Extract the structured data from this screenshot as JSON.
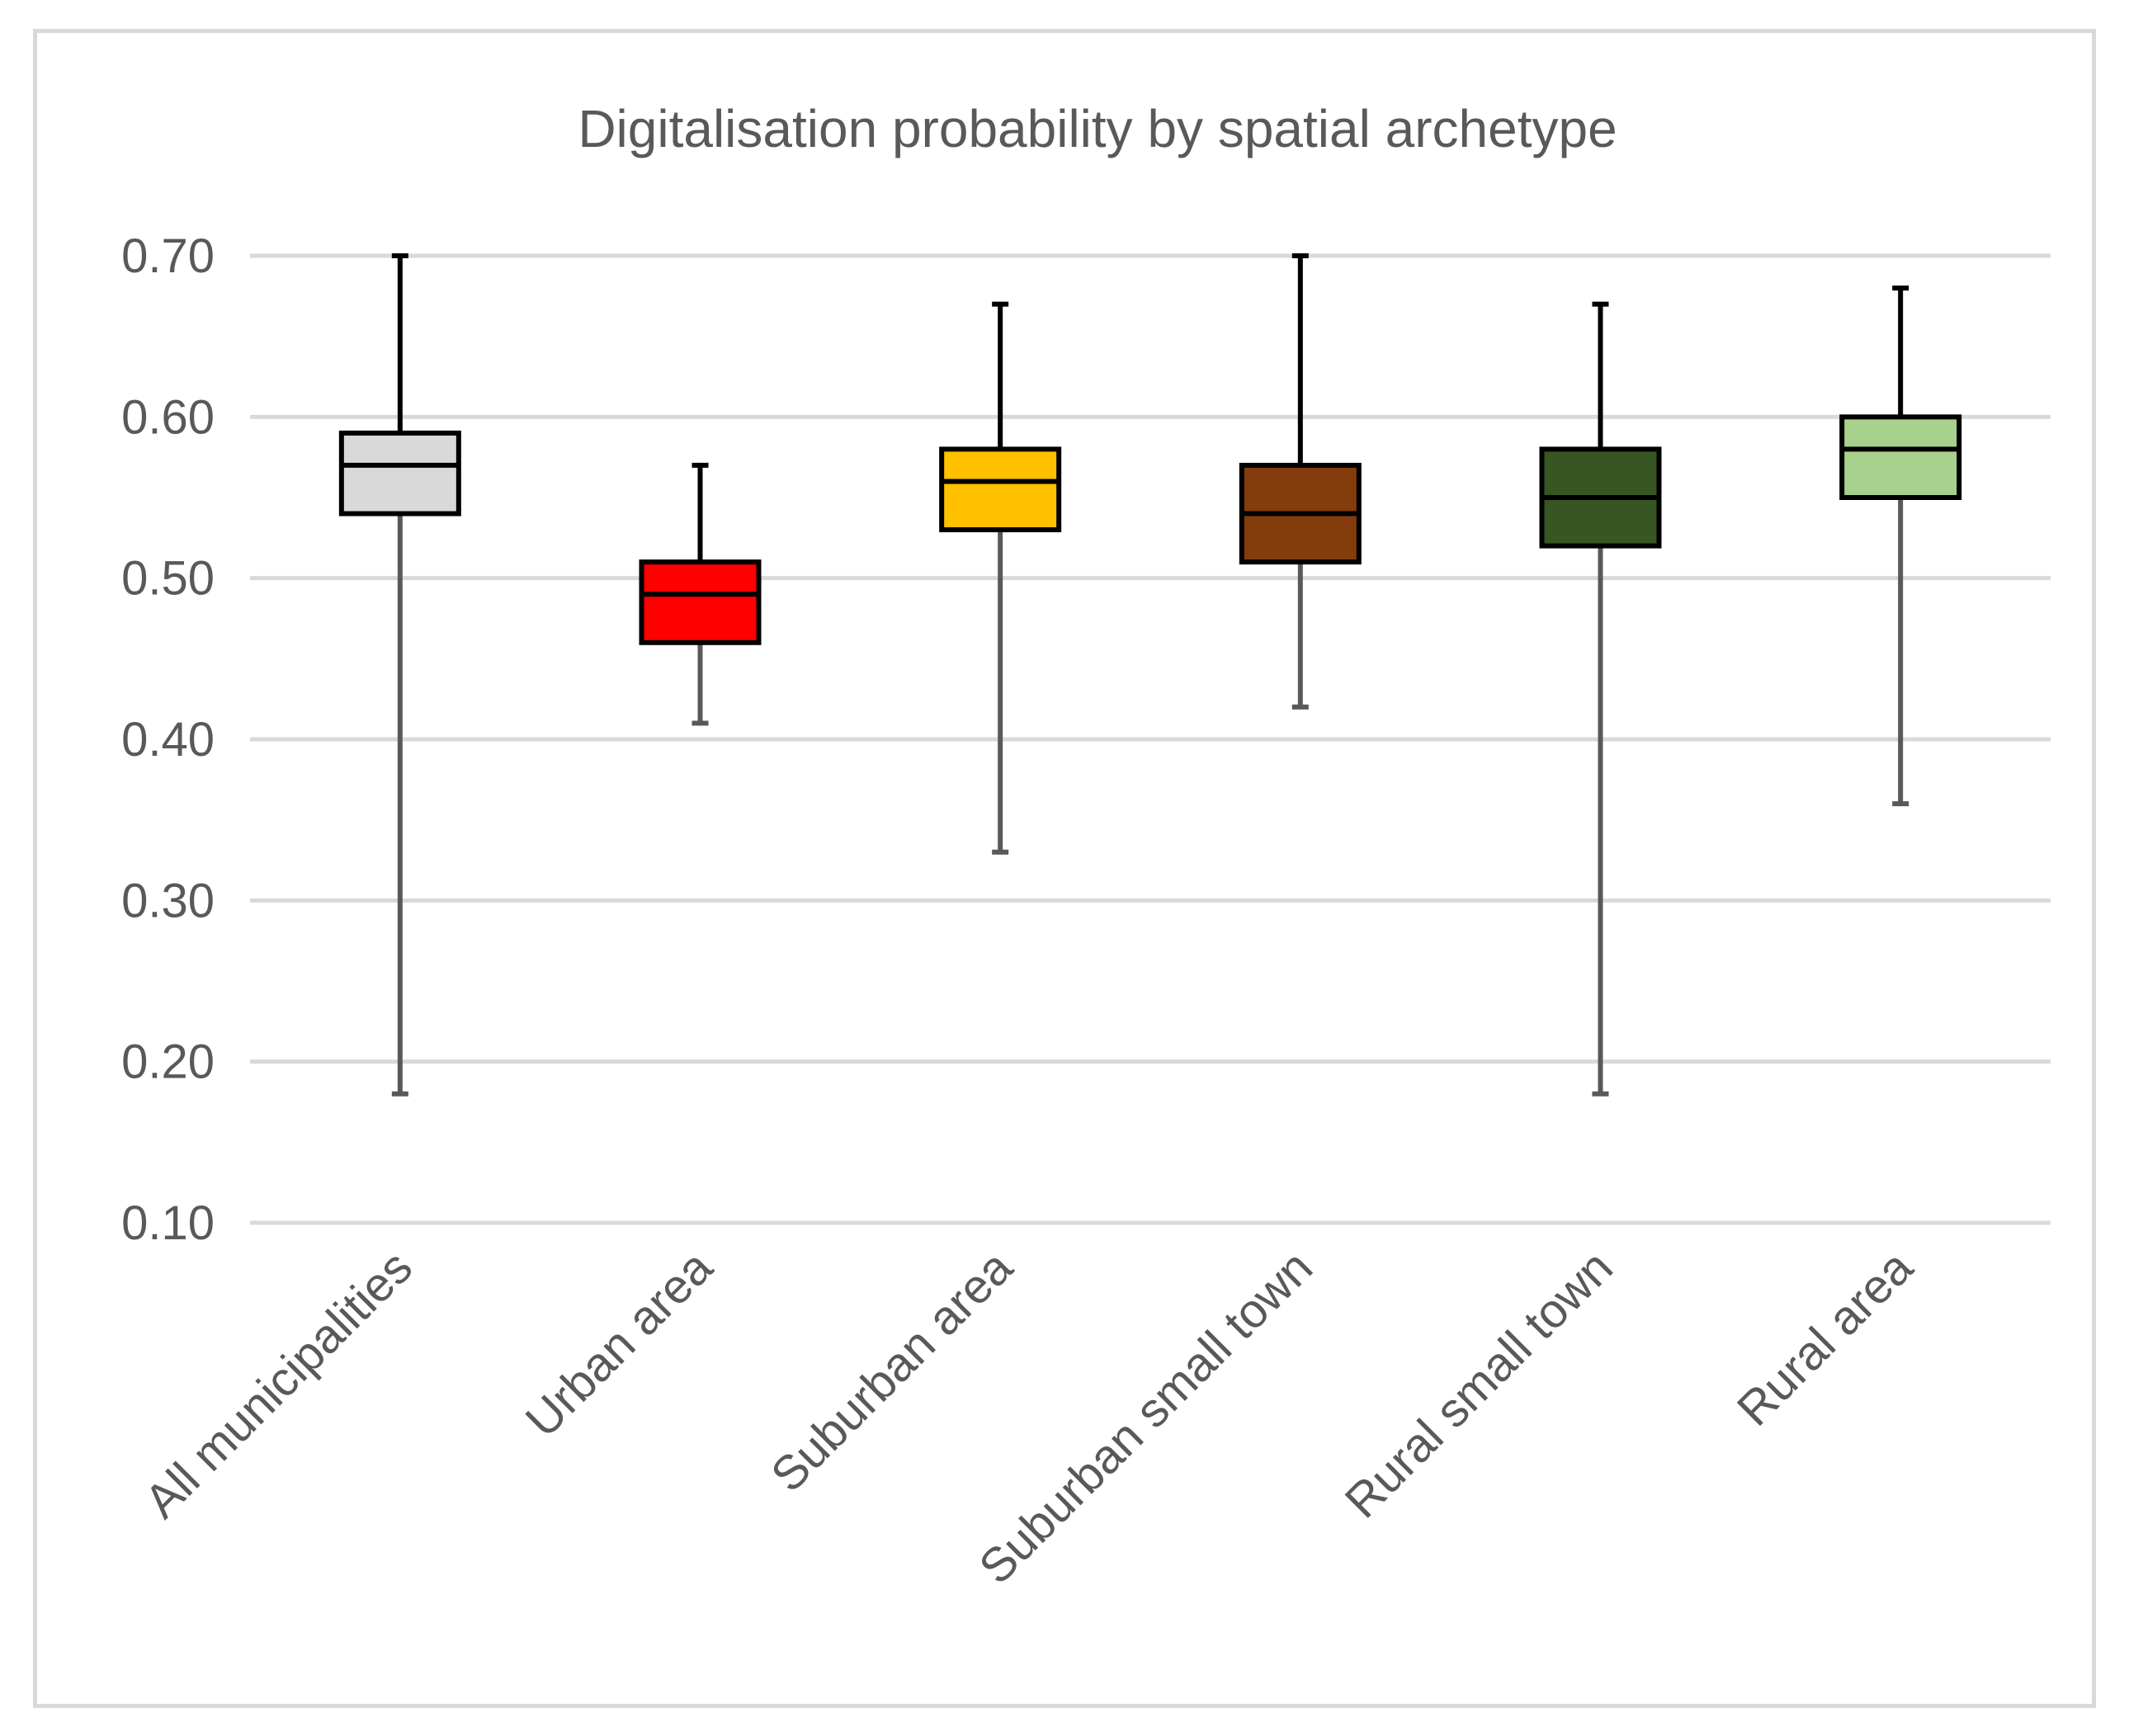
{
  "chart_data": {
    "type": "boxplot",
    "title": "Digitalisation probability by spatial archetype",
    "xlabel": "",
    "ylabel": "",
    "ylim": [
      0.1,
      0.7
    ],
    "yticks": [
      "0.70",
      "0.60",
      "0.50",
      "0.40",
      "0.30",
      "0.20",
      "0.10"
    ],
    "ytick_values": [
      0.7,
      0.6,
      0.5,
      0.4,
      0.3,
      0.2,
      0.1
    ],
    "grid": true,
    "categories": [
      "All municipalities",
      "Urban area",
      "Suburban area",
      "Suburban small town",
      "Rural small town",
      "Rural area"
    ],
    "series": [
      {
        "name": "All municipalities",
        "min": 0.18,
        "q1": 0.54,
        "median": 0.57,
        "q3": 0.59,
        "max": 0.7,
        "color": "#d9d9d9"
      },
      {
        "name": "Urban area",
        "min": 0.41,
        "q1": 0.46,
        "median": 0.49,
        "q3": 0.51,
        "max": 0.57,
        "color": "#ff0000"
      },
      {
        "name": "Suburban area",
        "min": 0.33,
        "q1": 0.53,
        "median": 0.56,
        "q3": 0.58,
        "max": 0.67,
        "color": "#ffc000"
      },
      {
        "name": "Suburban small town",
        "min": 0.42,
        "q1": 0.51,
        "median": 0.54,
        "q3": 0.57,
        "max": 0.7,
        "color": "#843c0c"
      },
      {
        "name": "Rural small town",
        "min": 0.18,
        "q1": 0.52,
        "median": 0.55,
        "q3": 0.58,
        "max": 0.67,
        "color": "#375623"
      },
      {
        "name": "Rural area",
        "min": 0.36,
        "q1": 0.55,
        "median": 0.58,
        "q3": 0.6,
        "max": 0.68,
        "color": "#a9d18e"
      }
    ]
  }
}
